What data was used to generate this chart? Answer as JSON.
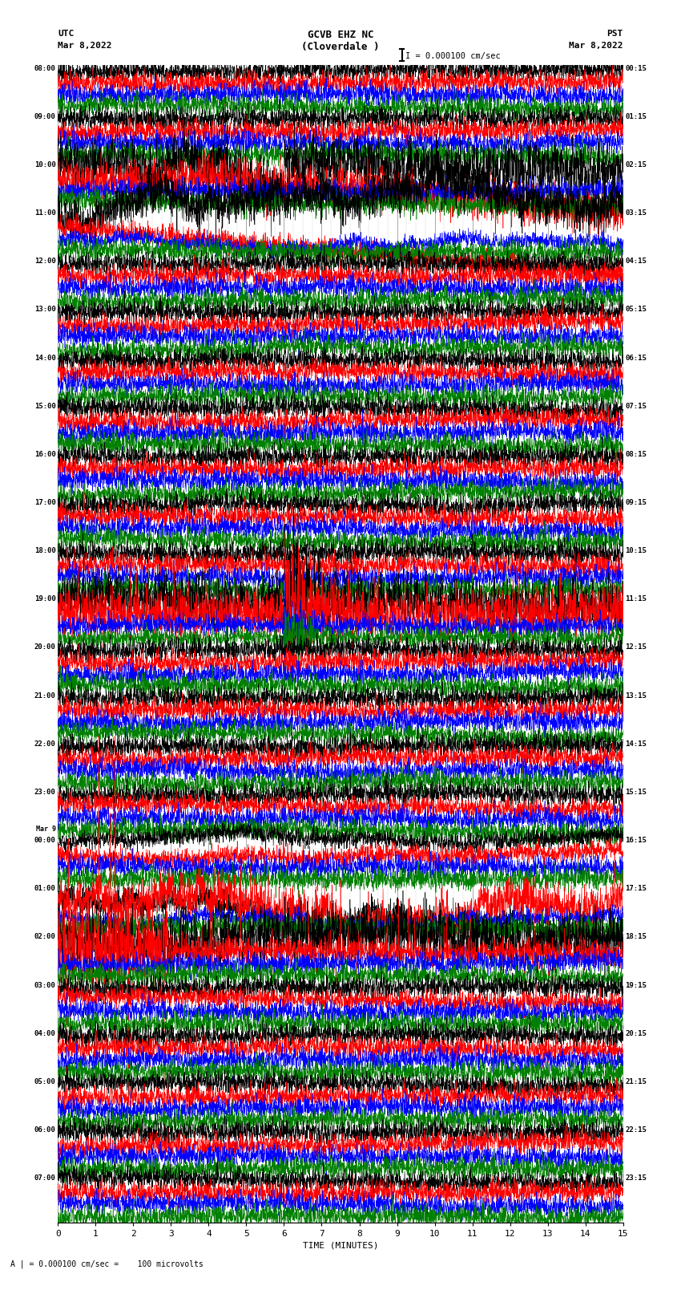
{
  "title_line1": "GCVB EHZ NC",
  "title_line2": "(Cloverdale )",
  "scale_text": "I = 0.000100 cm/sec",
  "left_header": "UTC",
  "left_subheader": "Mar 8,2022",
  "right_header": "PST",
  "right_subheader": "Mar 8,2022",
  "xlabel": "TIME (MINUTES)",
  "footer": "A | = 0.000100 cm/sec =    100 microvolts",
  "xlim": [
    0,
    15
  ],
  "xticks": [
    0,
    1,
    2,
    3,
    4,
    5,
    6,
    7,
    8,
    9,
    10,
    11,
    12,
    13,
    14,
    15
  ],
  "utc_labels": [
    "08:00",
    "09:00",
    "10:00",
    "11:00",
    "12:00",
    "13:00",
    "14:00",
    "15:00",
    "16:00",
    "17:00",
    "18:00",
    "19:00",
    "20:00",
    "21:00",
    "22:00",
    "23:00",
    "Mar 9\n00:00",
    "01:00",
    "02:00",
    "03:00",
    "04:00",
    "05:00",
    "06:00",
    "07:00"
  ],
  "pst_labels": [
    "00:15",
    "01:15",
    "02:15",
    "03:15",
    "04:15",
    "05:15",
    "06:15",
    "07:15",
    "08:15",
    "09:15",
    "10:15",
    "11:15",
    "12:15",
    "13:15",
    "14:15",
    "15:15",
    "16:15",
    "17:15",
    "18:15",
    "19:15",
    "20:15",
    "21:15",
    "22:15",
    "23:15"
  ],
  "num_rows": 24,
  "traces_per_row": 4,
  "colors": [
    "black",
    "red",
    "blue",
    "green"
  ],
  "bg_color": "white",
  "grid_color": "#808080",
  "fig_width": 8.5,
  "fig_height": 16.13,
  "dpi": 100,
  "trace_amplitude": 0.3,
  "lw": 0.4
}
